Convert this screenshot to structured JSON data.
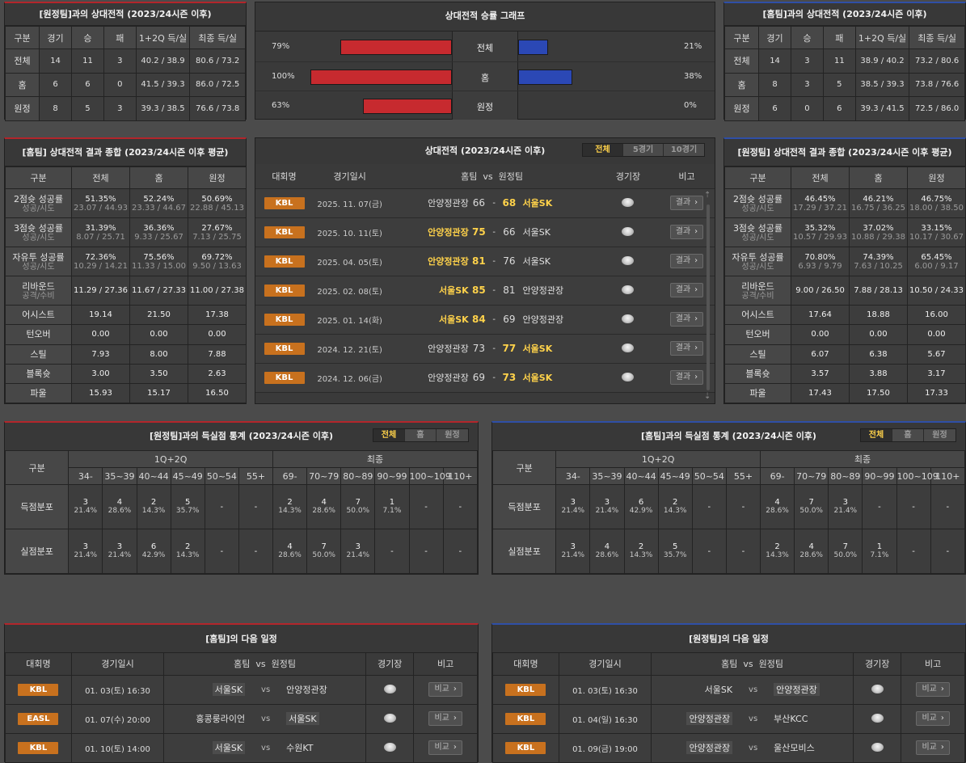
{
  "colors": {
    "accent": "#ffd24a",
    "badge": "#c8711e",
    "home_bar": "#c72a2f",
    "away_bar": "#2b48b5",
    "home_line": "#b3262b",
    "away_line": "#2f4fa6"
  },
  "icons": {
    "venue": "stadium-icon",
    "scroll_up": "arrow-up-icon",
    "scroll_down": "arrow-down-icon",
    "more": "chevron-right-icon"
  },
  "away_record": {
    "title": "[원정팀]과의 상대전적 (2023/24시즌 이후)",
    "headers": [
      "구분",
      "경기",
      "승",
      "패",
      "1+2Q 득/실",
      "최종 득/실"
    ],
    "rows": [
      [
        "전체",
        "14",
        "11",
        "3",
        "40.2 / 38.9",
        "80.6 / 73.2"
      ],
      [
        "홈",
        "6",
        "6",
        "0",
        "41.5 / 39.3",
        "86.0 / 72.5"
      ],
      [
        "원정",
        "8",
        "5",
        "3",
        "39.3 / 38.5",
        "76.6 / 73.8"
      ]
    ]
  },
  "graph": {
    "title": "상대전적 승률 그래프",
    "rows": [
      {
        "label": "전체",
        "home": "79%",
        "away": "21%",
        "home_pct": 79,
        "away_pct": 21
      },
      {
        "label": "홈",
        "home": "100%",
        "away": "38%",
        "home_pct": 100,
        "away_pct": 38
      },
      {
        "label": "원정",
        "home": "63%",
        "away": "0%",
        "home_pct": 63,
        "away_pct": 0
      }
    ]
  },
  "home_record": {
    "title": "[홈팀]과의 상대전적 (2023/24시즌 이후)",
    "headers": [
      "구분",
      "경기",
      "승",
      "패",
      "1+2Q 득/실",
      "최종 득/실"
    ],
    "rows": [
      [
        "전체",
        "14",
        "3",
        "11",
        "38.9 / 40.2",
        "73.2 / 80.6"
      ],
      [
        "홈",
        "8",
        "3",
        "5",
        "38.5 / 39.3",
        "73.8 / 76.6"
      ],
      [
        "원정",
        "6",
        "0",
        "6",
        "39.3 / 41.5",
        "72.5 / 86.0"
      ]
    ]
  },
  "home_summary": {
    "title": "[홈팀] 상대전적 결과 종합 (2023/24시즌 이후 평균)",
    "headers": [
      "구분",
      "전체",
      "홈",
      "원정"
    ],
    "rows": [
      {
        "label": "2점슛 성공률",
        "sub": "성공/시도",
        "vals": [
          "51.35%",
          "52.24%",
          "50.69%"
        ],
        "subs": [
          "23.07 / 44.93",
          "23.33 / 44.67",
          "22.88 / 45.13"
        ]
      },
      {
        "label": "3점슛 성공률",
        "sub": "성공/시도",
        "vals": [
          "31.39%",
          "36.36%",
          "27.67%"
        ],
        "subs": [
          "8.07 / 25.71",
          "9.33 / 25.67",
          "7.13 / 25.75"
        ]
      },
      {
        "label": "자유투 성공률",
        "sub": "성공/시도",
        "vals": [
          "72.36%",
          "75.56%",
          "69.72%"
        ],
        "subs": [
          "10.29 / 14.21",
          "11.33 / 15.00",
          "9.50 / 13.63"
        ]
      },
      {
        "label": "리바운드",
        "sub": "공격/수비",
        "vals": [
          "11.29 / 27.36",
          "11.67 / 27.33",
          "11.00 / 27.38"
        ],
        "subs": [
          "",
          "",
          ""
        ]
      },
      {
        "label": "어시스트",
        "sub": "",
        "vals": [
          "19.14",
          "21.50",
          "17.38"
        ],
        "subs": [
          "",
          "",
          ""
        ]
      },
      {
        "label": "턴오버",
        "sub": "",
        "vals": [
          "0.00",
          "0.00",
          "0.00"
        ],
        "subs": [
          "",
          "",
          ""
        ]
      },
      {
        "label": "스틸",
        "sub": "",
        "vals": [
          "7.93",
          "8.00",
          "7.88"
        ],
        "subs": [
          "",
          "",
          ""
        ]
      },
      {
        "label": "블록슛",
        "sub": "",
        "vals": [
          "3.00",
          "3.50",
          "2.63"
        ],
        "subs": [
          "",
          "",
          ""
        ]
      },
      {
        "label": "파울",
        "sub": "",
        "vals": [
          "15.93",
          "15.17",
          "16.50"
        ],
        "subs": [
          "",
          "",
          ""
        ]
      }
    ]
  },
  "away_summary": {
    "title": "[원정팀] 상대전적 결과 종합 (2023/24시즌 이후 평균)",
    "headers": [
      "구분",
      "전체",
      "홈",
      "원정"
    ],
    "rows": [
      {
        "label": "2점슛 성공률",
        "sub": "성공/시도",
        "vals": [
          "46.45%",
          "46.21%",
          "46.75%"
        ],
        "subs": [
          "17.29 / 37.21",
          "16.75 / 36.25",
          "18.00 / 38.50"
        ]
      },
      {
        "label": "3점슛 성공률",
        "sub": "성공/시도",
        "vals": [
          "35.32%",
          "37.02%",
          "33.15%"
        ],
        "subs": [
          "10.57 / 29.93",
          "10.88 / 29.38",
          "10.17 / 30.67"
        ]
      },
      {
        "label": "자유투 성공률",
        "sub": "성공/시도",
        "vals": [
          "70.80%",
          "74.39%",
          "65.45%"
        ],
        "subs": [
          "6.93 / 9.79",
          "7.63 / 10.25",
          "6.00 / 9.17"
        ]
      },
      {
        "label": "리바운드",
        "sub": "공격/수비",
        "vals": [
          "9.00 / 26.50",
          "7.88 / 28.13",
          "10.50 / 24.33"
        ],
        "subs": [
          "",
          "",
          ""
        ]
      },
      {
        "label": "어시스트",
        "sub": "",
        "vals": [
          "17.64",
          "18.88",
          "16.00"
        ],
        "subs": [
          "",
          "",
          ""
        ]
      },
      {
        "label": "턴오버",
        "sub": "",
        "vals": [
          "0.00",
          "0.00",
          "0.00"
        ],
        "subs": [
          "",
          "",
          ""
        ]
      },
      {
        "label": "스틸",
        "sub": "",
        "vals": [
          "6.07",
          "6.38",
          "5.67"
        ],
        "subs": [
          "",
          "",
          ""
        ]
      },
      {
        "label": "블록슛",
        "sub": "",
        "vals": [
          "3.57",
          "3.88",
          "3.17"
        ],
        "subs": [
          "",
          "",
          ""
        ]
      },
      {
        "label": "파울",
        "sub": "",
        "vals": [
          "17.43",
          "17.50",
          "17.33"
        ],
        "subs": [
          "",
          "",
          ""
        ]
      }
    ]
  },
  "h2h": {
    "title": "상대전적 (2023/24시즌 이후)",
    "tabs": [
      "전체",
      "5경기",
      "10경기"
    ],
    "headers": {
      "league": "대회명",
      "date": "경기일시",
      "home": "홈팀",
      "vs": "vs",
      "away": "원정팀",
      "venue": "경기장",
      "note": "비고"
    },
    "more_label": "결과",
    "rows": [
      {
        "league": "KBL",
        "date": "2025. 11. 07(금)",
        "home": "안양정관장",
        "hs": "66",
        "as": "68",
        "away": "서울SK",
        "win": "away"
      },
      {
        "league": "KBL",
        "date": "2025. 10. 11(토)",
        "home": "안양정관장",
        "hs": "75",
        "as": "66",
        "away": "서울SK",
        "win": "home"
      },
      {
        "league": "KBL",
        "date": "2025. 04. 05(토)",
        "home": "안양정관장",
        "hs": "81",
        "as": "76",
        "away": "서울SK",
        "win": "home"
      },
      {
        "league": "KBL",
        "date": "2025. 02. 08(토)",
        "home": "서울SK",
        "hs": "85",
        "as": "81",
        "away": "안양정관장",
        "win": "home"
      },
      {
        "league": "KBL",
        "date": "2025. 01. 14(화)",
        "home": "서울SK",
        "hs": "84",
        "as": "69",
        "away": "안양정관장",
        "win": "home"
      },
      {
        "league": "KBL",
        "date": "2024. 12. 21(토)",
        "home": "안양정관장",
        "hs": "73",
        "as": "77",
        "away": "서울SK",
        "win": "away"
      },
      {
        "league": "KBL",
        "date": "2024. 12. 06(금)",
        "home": "안양정관장",
        "hs": "69",
        "as": "73",
        "away": "서울SK",
        "win": "away"
      }
    ]
  },
  "score_stats_away": {
    "title": "[원정팀]과의 득실점 통계 (2023/24시즌 이후)",
    "tabs": [
      "전체",
      "홈",
      "원정"
    ],
    "label_col": "구분",
    "group1": "1Q+2Q",
    "group2": "최종",
    "cols1": [
      "34-",
      "35~39",
      "40~44",
      "45~49",
      "50~54",
      "55+"
    ],
    "cols2": [
      "69-",
      "70~79",
      "80~89",
      "90~99",
      "100~109",
      "110+"
    ],
    "rows": [
      {
        "label": "득점분포",
        "cells": [
          [
            "3",
            "21.4%"
          ],
          [
            "4",
            "28.6%"
          ],
          [
            "2",
            "14.3%"
          ],
          [
            "5",
            "35.7%"
          ],
          [
            "-",
            ""
          ],
          [
            "-",
            ""
          ],
          [
            "2",
            "14.3%"
          ],
          [
            "4",
            "28.6%"
          ],
          [
            "7",
            "50.0%"
          ],
          [
            "1",
            "7.1%"
          ],
          [
            "-",
            ""
          ],
          [
            "-",
            ""
          ]
        ]
      },
      {
        "label": "실점분포",
        "cells": [
          [
            "3",
            "21.4%"
          ],
          [
            "3",
            "21.4%"
          ],
          [
            "6",
            "42.9%"
          ],
          [
            "2",
            "14.3%"
          ],
          [
            "-",
            ""
          ],
          [
            "-",
            ""
          ],
          [
            "4",
            "28.6%"
          ],
          [
            "7",
            "50.0%"
          ],
          [
            "3",
            "21.4%"
          ],
          [
            "-",
            ""
          ],
          [
            "-",
            ""
          ],
          [
            "-",
            ""
          ]
        ]
      }
    ]
  },
  "score_stats_home": {
    "title": "[홈팀]과의 득실점 통계 (2023/24시즌 이후)",
    "tabs": [
      "전체",
      "홈",
      "원정"
    ],
    "label_col": "구분",
    "group1": "1Q+2Q",
    "group2": "최종",
    "cols1": [
      "34-",
      "35~39",
      "40~44",
      "45~49",
      "50~54",
      "55+"
    ],
    "cols2": [
      "69-",
      "70~79",
      "80~89",
      "90~99",
      "100~109",
      "110+"
    ],
    "rows": [
      {
        "label": "득점분포",
        "cells": [
          [
            "3",
            "21.4%"
          ],
          [
            "3",
            "21.4%"
          ],
          [
            "6",
            "42.9%"
          ],
          [
            "2",
            "14.3%"
          ],
          [
            "-",
            ""
          ],
          [
            "-",
            ""
          ],
          [
            "4",
            "28.6%"
          ],
          [
            "7",
            "50.0%"
          ],
          [
            "3",
            "21.4%"
          ],
          [
            "-",
            ""
          ],
          [
            "-",
            ""
          ],
          [
            "-",
            ""
          ]
        ]
      },
      {
        "label": "실점분포",
        "cells": [
          [
            "3",
            "21.4%"
          ],
          [
            "4",
            "28.6%"
          ],
          [
            "2",
            "14.3%"
          ],
          [
            "5",
            "35.7%"
          ],
          [
            "-",
            ""
          ],
          [
            "-",
            ""
          ],
          [
            "2",
            "14.3%"
          ],
          [
            "4",
            "28.6%"
          ],
          [
            "7",
            "50.0%"
          ],
          [
            "1",
            "7.1%"
          ],
          [
            "-",
            ""
          ],
          [
            "-",
            ""
          ]
        ]
      }
    ]
  },
  "next_home": {
    "title": "[홈팀]의 다음 일정",
    "headers": {
      "league": "대회명",
      "date": "경기일시",
      "home": "홈팀",
      "vs": "vs",
      "away": "원정팀",
      "venue": "경기장",
      "note": "비고"
    },
    "more_label": "비교",
    "rows": [
      {
        "league": "KBL",
        "date": "01. 03(토) 16:30",
        "home": "서울SK",
        "vs": "vs",
        "away": "안양정관장",
        "box": "home"
      },
      {
        "league": "EASL",
        "date": "01. 07(수) 20:00",
        "home": "홍콩룽라이언",
        "vs": "vs",
        "away": "서울SK",
        "box": "away"
      },
      {
        "league": "KBL",
        "date": "01. 10(토) 14:00",
        "home": "서울SK",
        "vs": "vs",
        "away": "수원KT",
        "box": "home"
      }
    ]
  },
  "next_away": {
    "title": "[원정팀]의 다음 일정",
    "headers": {
      "league": "대회명",
      "date": "경기일시",
      "home": "홈팀",
      "vs": "vs",
      "away": "원정팀",
      "venue": "경기장",
      "note": "비고"
    },
    "more_label": "비교",
    "rows": [
      {
        "league": "KBL",
        "date": "01. 03(토) 16:30",
        "home": "서울SK",
        "vs": "vs",
        "away": "안양정관장",
        "box": "away"
      },
      {
        "league": "KBL",
        "date": "01. 04(일) 16:30",
        "home": "안양정관장",
        "vs": "vs",
        "away": "부산KCC",
        "box": "home"
      },
      {
        "league": "KBL",
        "date": "01. 09(금) 19:00",
        "home": "안양정관장",
        "vs": "vs",
        "away": "울산모비스",
        "box": "home"
      }
    ]
  }
}
